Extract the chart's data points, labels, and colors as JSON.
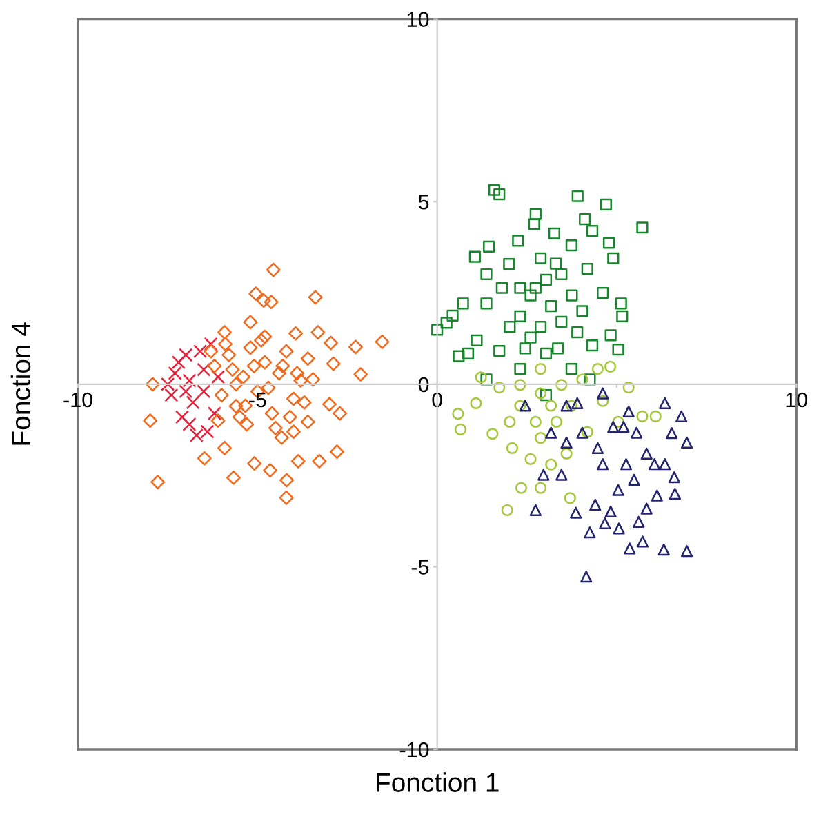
{
  "chart_data": {
    "type": "scatter",
    "xlabel": "Fonction 1",
    "ylabel": "Fonction 4",
    "xlim": [
      -10,
      10
    ],
    "ylim": [
      -10,
      10
    ],
    "xticks": [
      -10,
      -5,
      0,
      {
        "value": 5,
        "label": null
      },
      10
    ],
    "yticks": [
      -10,
      -5,
      0,
      5,
      10
    ],
    "grid": false,
    "series": [
      {
        "color": "#e8203a",
        "marker": "cross",
        "x": [
          -7.3,
          -7.0,
          -6.8,
          -7.1,
          -6.6,
          -6.4,
          -7.4,
          -6.9,
          -6.5,
          -6.2,
          -7.2,
          -6.7,
          -6.3,
          -7.5,
          -6.9,
          -6.1,
          -7.0,
          -6.5
        ],
        "values": [
          0.3,
          0.8,
          -0.5,
          -0.9,
          0.9,
          -1.3,
          -0.3,
          0.1,
          0.4,
          -0.8,
          0.6,
          -1.4,
          1.1,
          0.0,
          -1.1,
          0.2,
          -0.2,
          -0.2
        ]
      },
      {
        "color": "#f06a1e",
        "marker": "diamond",
        "x": [
          -4.56,
          -5.05,
          -4.83,
          -4.62,
          -3.39,
          -2.27,
          -1.53,
          -2.13,
          -7.92,
          -7.99,
          -7.78,
          -6.48,
          -5.67,
          -5.09,
          -4.65,
          -4.19,
          -4.2,
          -3.87,
          -3.28,
          -2.79,
          -2.71,
          -3.0,
          -2.89,
          -2.96,
          -3.32,
          -3.94,
          -5.2,
          -5.92,
          -3.46,
          -3.6,
          -4.33,
          -5.92,
          -5.34,
          -6.2,
          -6.0,
          -5.8,
          -5.6,
          -5.4,
          -5.2,
          -5.0,
          -4.8,
          -4.6,
          -4.4,
          -4.2,
          -4.0,
          -3.8,
          -3.6,
          -6.1,
          -5.7,
          -5.3,
          -4.9,
          -4.5,
          -4.1,
          -3.7,
          -5.9,
          -5.5,
          -5.1,
          -4.7,
          -4.3,
          -3.9,
          -6.3,
          -5.6,
          -4.8,
          -4.0
        ],
        "values": [
          3.13,
          2.48,
          2.29,
          2.25,
          2.38,
          1.02,
          1.16,
          0.27,
          0.0,
          -1.0,
          -2.68,
          -2.03,
          -2.56,
          -2.17,
          -2.36,
          -2.63,
          -3.11,
          -2.11,
          -2.11,
          -1.85,
          -0.8,
          -0.55,
          0.56,
          1.13,
          1.42,
          1.39,
          1.7,
          1.42,
          0.13,
          -1.03,
          -1.46,
          -1.75,
          -0.59,
          0.5,
          -0.3,
          0.8,
          -0.6,
          0.2,
          1.0,
          -0.2,
          0.6,
          -0.8,
          0.3,
          0.9,
          -0.4,
          0.1,
          0.7,
          -1.0,
          0.4,
          -1.1,
          1.2,
          -1.2,
          -0.9,
          -0.5,
          1.1,
          -0.9,
          0.5,
          -0.1,
          0.5,
          0.3,
          0.9,
          0.0,
          1.3,
          -1.3
        ]
      },
      {
        "color": "#17872c",
        "marker": "square",
        "x": [
          1.59,
          1.73,
          3.91,
          4.7,
          5.71,
          2.74,
          2.7,
          4.11,
          4.32,
          1.05,
          1.44,
          2.25,
          3.26,
          3.74,
          4.78,
          4.9,
          1.37,
          2.0,
          2.88,
          3.46,
          4.18,
          4.61,
          5.12,
          5.15,
          0.72,
          0.43,
          0.0,
          0.26,
          0.6,
          0.86,
          1.1,
          1.37,
          1.8,
          2.31,
          2.6,
          3.03,
          3.17,
          3.75,
          4.04,
          2.31,
          2.88,
          3.46,
          3.9,
          4.32,
          4.83,
          5.04,
          1.73,
          2.45,
          3.03,
          3.36,
          1.37,
          2.31,
          3.03,
          3.74,
          4.25,
          2.6,
          2.02,
          3.3,
          2.74
        ],
        "values": [
          5.32,
          5.2,
          5.15,
          4.92,
          4.29,
          4.66,
          4.38,
          4.52,
          4.2,
          3.49,
          3.77,
          3.93,
          4.13,
          3.8,
          3.87,
          3.45,
          3.01,
          3.29,
          3.45,
          3.01,
          3.16,
          2.5,
          2.21,
          1.86,
          2.21,
          1.88,
          1.49,
          1.68,
          0.77,
          0.84,
          1.2,
          2.21,
          2.64,
          2.64,
          2.43,
          2.86,
          2.14,
          2.43,
          2.0,
          1.86,
          1.57,
          1.71,
          1.42,
          1.06,
          1.34,
          0.95,
          0.91,
          0.98,
          0.84,
          0.98,
          0.13,
          0.42,
          -0.3,
          0.42,
          0.13,
          1.28,
          1.57,
          3.3,
          2.64
        ]
      },
      {
        "color": "#a5c83a",
        "marker": "circle",
        "x": [
          0.58,
          0.65,
          1.08,
          1.54,
          1.95,
          2.34,
          2.09,
          2.88,
          3.7,
          4.82,
          5.33,
          5.71,
          6.08,
          1.22,
          1.73,
          2.31,
          2.74,
          3.17,
          2.6,
          3.17,
          3.6,
          4.18,
          4.61,
          5.04,
          2.31,
          2.88,
          3.46,
          4.04,
          2.88,
          3.32,
          4.47,
          2.02,
          2.88,
          3.74
        ],
        "values": [
          -0.81,
          -1.24,
          -0.52,
          -1.36,
          -3.45,
          -2.84,
          -1.75,
          -2.84,
          -3.12,
          0.48,
          -0.09,
          -0.88,
          -0.88,
          0.19,
          -0.09,
          -0.59,
          -1.03,
          -0.59,
          -2.05,
          -2.2,
          -1.9,
          -1.31,
          -0.46,
          -1.03,
          -0.02,
          -0.25,
          -0.02,
          0.13,
          -1.47,
          -1.03,
          0.42,
          -1.03,
          0.42,
          -0.59
        ]
      },
      {
        "color": "#23236e",
        "marker": "triangle",
        "x": [
          4.15,
          5.36,
          5.72,
          6.31,
          6.95,
          4.25,
          4.67,
          5.06,
          5.61,
          2.74,
          3.86,
          4.4,
          5.83,
          6.62,
          6.12,
          6.34,
          6.8,
          6.53,
          6.95,
          6.6,
          6.34,
          5.83,
          5.55,
          5.26,
          5.48,
          5.04,
          3.9,
          4.61,
          4.9,
          5.19,
          3.17,
          3.6,
          4.04,
          4.47,
          3.46,
          2.96,
          2.45,
          3.6,
          4.61,
          4.83,
          6.05,
          5.33
        ],
        "values": [
          -5.27,
          -4.5,
          -4.31,
          -4.53,
          -4.57,
          -4.06,
          -3.81,
          -3.95,
          -3.77,
          -3.45,
          -3.52,
          -3.3,
          -3.41,
          -3.0,
          -3.05,
          -0.52,
          -0.88,
          -1.34,
          -1.6,
          -2.55,
          -2.19,
          -1.9,
          -1.33,
          -2.19,
          -2.62,
          -2.9,
          -0.52,
          -0.25,
          -1.17,
          -1.17,
          -1.33,
          -1.6,
          -1.33,
          -1.75,
          -2.48,
          -2.48,
          -0.59,
          -0.59,
          -2.19,
          -3.49,
          -2.19,
          -0.75
        ]
      }
    ]
  }
}
